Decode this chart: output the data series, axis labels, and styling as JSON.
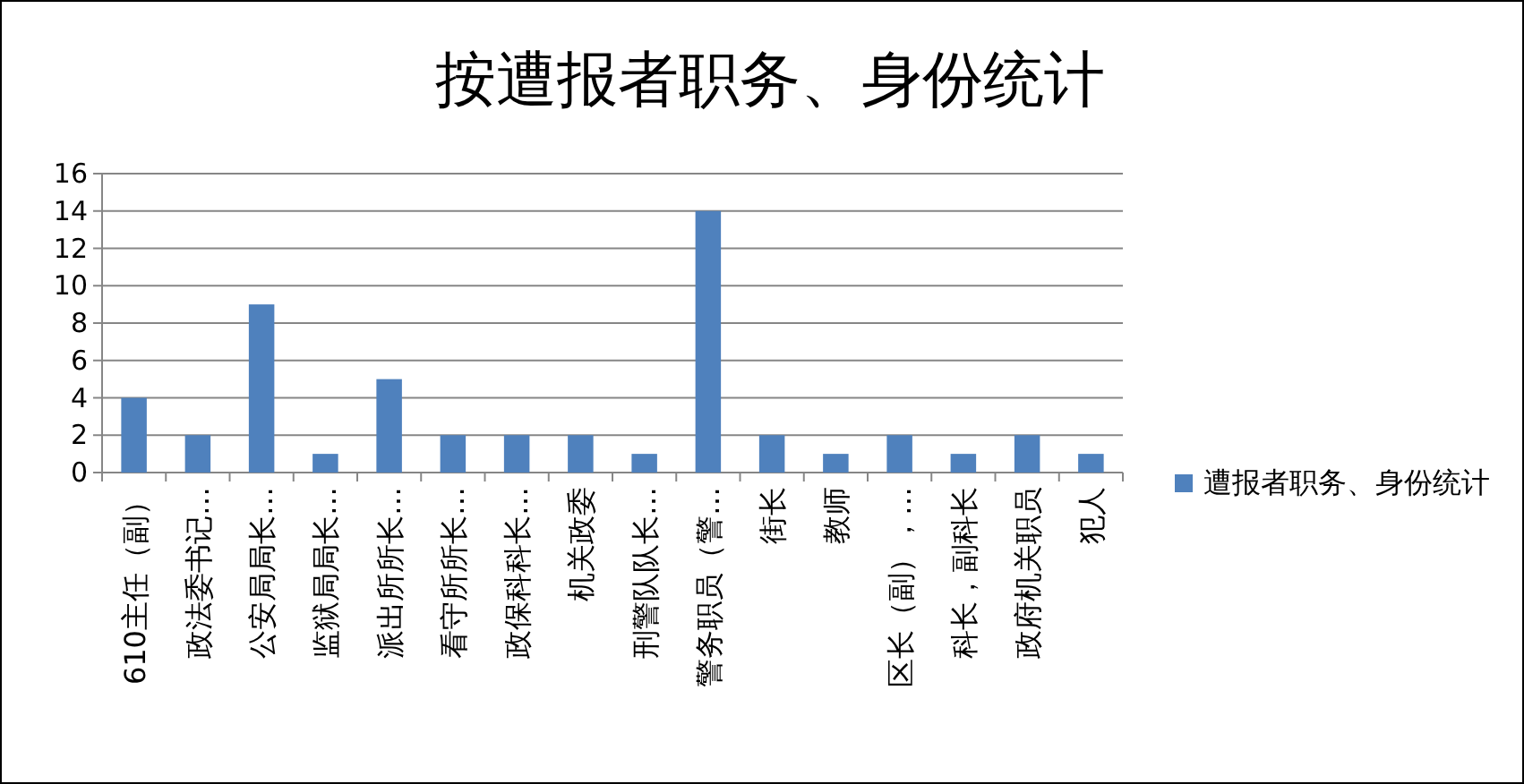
{
  "chart_data": {
    "type": "bar",
    "title": "按遭报者职务、身份统计",
    "categories": [
      "610主任（副）",
      "政法委书记…",
      "公安局局长…",
      "监狱局局长…",
      "派出所所长…",
      "看守所所长…",
      "政保科科长…",
      "机关政委",
      "刑警队队长…",
      "警务职员（警…",
      "街长",
      "教师",
      "区长（副），…",
      "科长，副科长",
      "政府机关职员",
      "犯人"
    ],
    "series": [
      {
        "name": "遭报者职务、身份统计",
        "color": "#4f81bd",
        "values": [
          4,
          2,
          9,
          1,
          5,
          2,
          2,
          2,
          1,
          14,
          2,
          1,
          2,
          1,
          2,
          1
        ]
      }
    ],
    "ylim": [
      0,
      16
    ],
    "yticks": [
      0,
      2,
      4,
      6,
      8,
      10,
      12,
      14,
      16
    ],
    "grid": "y",
    "legend": "right"
  }
}
